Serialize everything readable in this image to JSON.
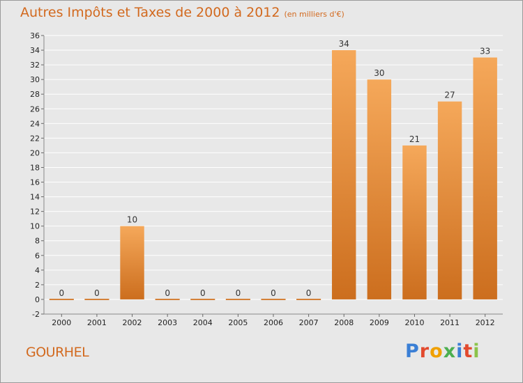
{
  "header": {
    "title": "Autres Impôts et Taxes de 2000 à 2012",
    "unit": "(en milliers d'€)"
  },
  "footer": {
    "commune": "GOURHEL",
    "logo": "Proxiti",
    "logo_colors": [
      "#3a7fd5",
      "#e24a2e",
      "#f0a000",
      "#4caf50",
      "#3a7fd5",
      "#e24a2e",
      "#8bc34a"
    ]
  },
  "colors": {
    "bar_top": "#f5a85a",
    "bar_bottom": "#cc6e1e",
    "bar_stroke": "#c86a1c",
    "grid": "#ffffff",
    "plot_bg": "#e8e8e8"
  },
  "chart_data": {
    "type": "bar",
    "title": "Autres Impôts et Taxes de 2000 à 2012",
    "subtitle": "(en milliers d'€)",
    "categories": [
      "2000",
      "2001",
      "2002",
      "2003",
      "2004",
      "2005",
      "2006",
      "2007",
      "2008",
      "2009",
      "2010",
      "2011",
      "2012"
    ],
    "values": [
      0,
      0,
      10,
      0,
      0,
      0,
      0,
      0,
      34,
      30,
      21,
      27,
      33
    ],
    "data_labels": [
      "0",
      "0",
      "10",
      "0",
      "0",
      "0",
      "0",
      "0",
      "34",
      "30",
      "21",
      "27",
      "33"
    ],
    "ylim": [
      -2,
      36
    ],
    "yticks": [
      -2,
      0,
      2,
      4,
      6,
      8,
      10,
      12,
      14,
      16,
      18,
      20,
      22,
      24,
      26,
      28,
      30,
      32,
      34,
      36
    ],
    "grid": true,
    "xlabel": "",
    "ylabel": ""
  }
}
